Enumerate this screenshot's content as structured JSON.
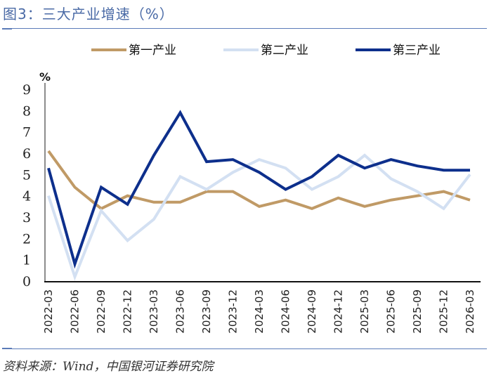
{
  "header": {
    "title": "图3：三大产业增速（%）"
  },
  "footer": {
    "source": "资料来源：Wind，中国银河证券研究院"
  },
  "chart_data": {
    "type": "line",
    "title": "图3：三大产业增速（%）",
    "xlabel": "",
    "ylabel": "%",
    "ylim": [
      0,
      9
    ],
    "yticks": [
      0,
      1,
      2,
      3,
      4,
      5,
      6,
      7,
      8,
      9
    ],
    "grid": false,
    "legend_position": "top",
    "categories": [
      "2022-03",
      "2022-06",
      "2022-09",
      "2022-12",
      "2023-03",
      "2023-06",
      "2023-09",
      "2023-12",
      "2024-03",
      "2024-06",
      "2024-09",
      "2024-12",
      "2025-03",
      "2025-06",
      "2025-09",
      "2025-12",
      "2026-03"
    ],
    "series": [
      {
        "name": "第一产业",
        "color": "#c09a66",
        "values": [
          6.1,
          4.4,
          3.4,
          4.0,
          3.7,
          3.7,
          4.2,
          4.2,
          3.5,
          3.8,
          3.4,
          3.9,
          3.5,
          3.8,
          4.0,
          4.2,
          3.8
        ]
      },
      {
        "name": "第二产业",
        "color": "#d3e0f2",
        "values": [
          4.0,
          0.2,
          3.3,
          1.9,
          2.9,
          4.9,
          4.3,
          5.1,
          5.7,
          5.3,
          4.3,
          4.9,
          5.9,
          4.8,
          4.2,
          3.4,
          5.0
        ]
      },
      {
        "name": "第三产业",
        "color": "#0d2f8c",
        "values": [
          5.3,
          0.8,
          4.4,
          3.6,
          5.9,
          7.9,
          5.6,
          5.7,
          5.1,
          4.3,
          4.9,
          5.9,
          5.3,
          5.7,
          5.4,
          5.2,
          5.2
        ]
      }
    ]
  }
}
